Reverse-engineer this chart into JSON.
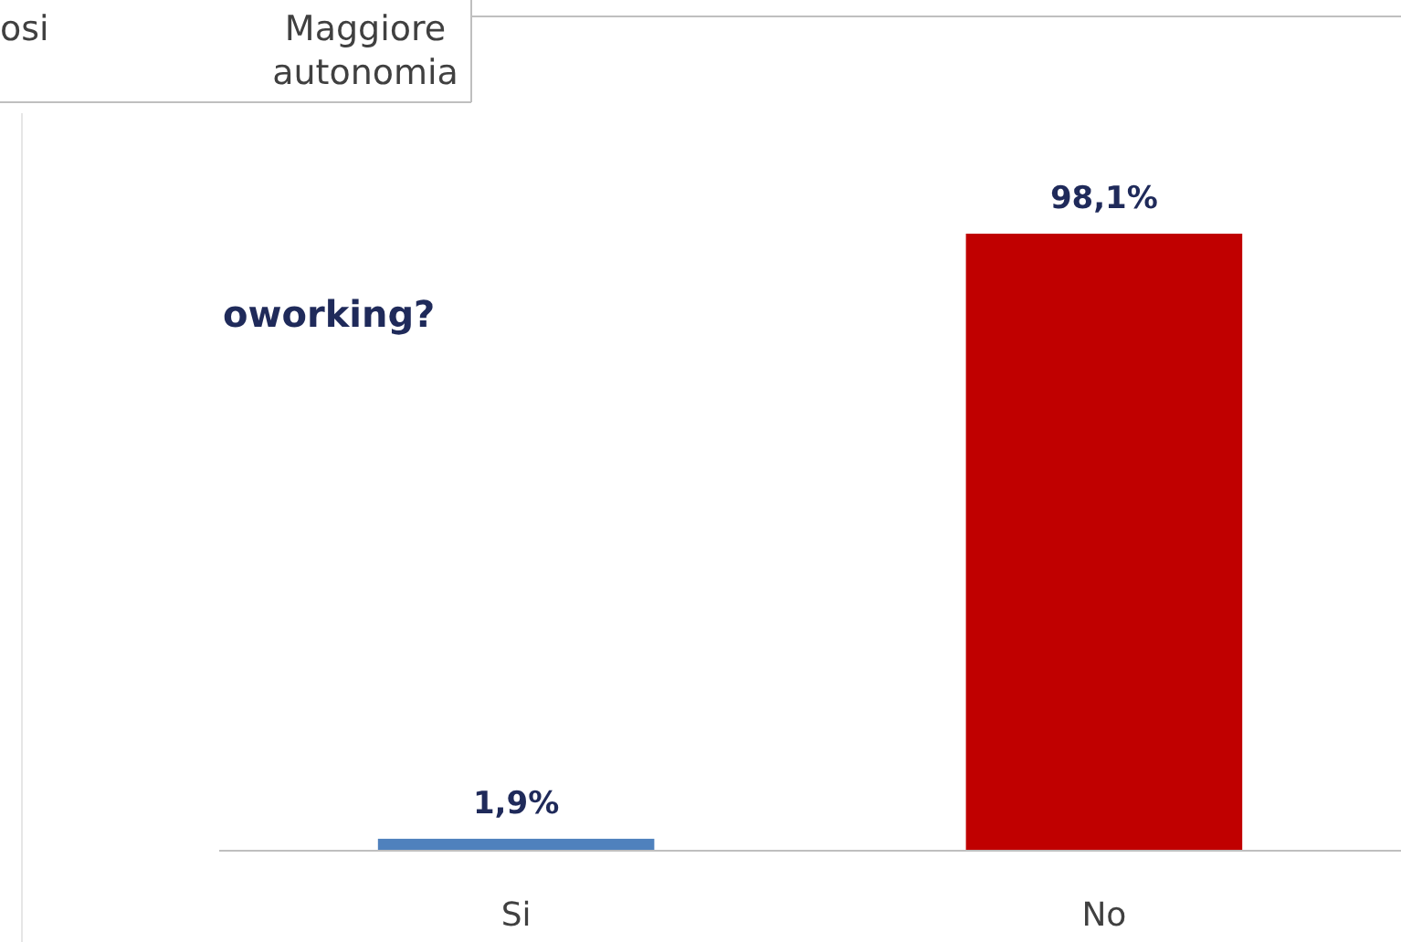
{
  "chart_data": {
    "type": "bar",
    "categories": [
      "Si",
      "No"
    ],
    "values": [
      1.9,
      98.1
    ],
    "colors": [
      "#4f81bd",
      "#c00000"
    ],
    "value_labels": [
      "1,9%",
      "98,1%"
    ],
    "annotations": [
      "osi",
      "Maggiore autonomia",
      "oworking?"
    ]
  }
}
